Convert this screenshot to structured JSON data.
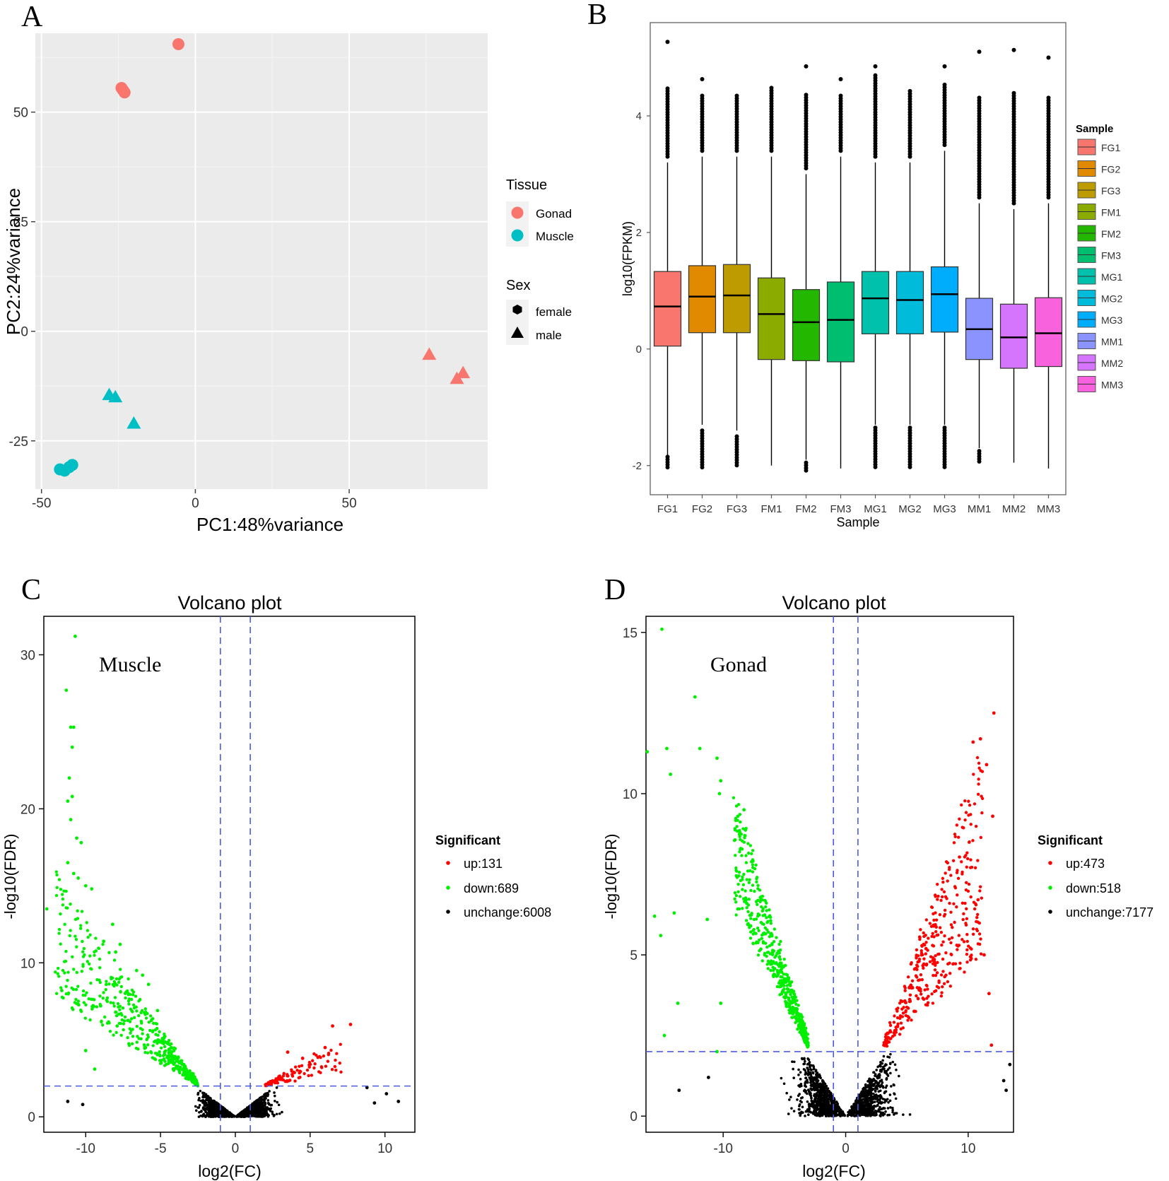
{
  "panels": {
    "A": {
      "letter": "A"
    },
    "B": {
      "letter": "B"
    },
    "C": {
      "letter": "C"
    },
    "D": {
      "letter": "D"
    }
  },
  "colors": {
    "gonad": "#F8766D",
    "muscle": "#00BFC4",
    "up": "#FF0000",
    "down": "#00EE00",
    "unchange": "#000000",
    "threshold": "#4B5BE0",
    "panel_bg": "#EBEBEB"
  },
  "chart_data": [
    {
      "panel": "A",
      "type": "scatter",
      "title": "",
      "xlabel": "PC1:48%variance",
      "ylabel": "PC2:24%variance",
      "xlim": [
        -52,
        95
      ],
      "ylim": [
        -36,
        68
      ],
      "xticks": [
        -50,
        0,
        50
      ],
      "yticks": [
        -25,
        0,
        25,
        50
      ],
      "grid": true,
      "legend": {
        "color_title": "Tissue",
        "color_entries": [
          "Gonad",
          "Muscle"
        ],
        "shape_title": "Sex",
        "shape_entries": [
          "female",
          "male"
        ]
      },
      "points": [
        {
          "x": -5.5,
          "y": 65.5,
          "tissue": "Gonad",
          "sex": "female"
        },
        {
          "x": -24,
          "y": 55.5,
          "tissue": "Gonad",
          "sex": "female"
        },
        {
          "x": -23.5,
          "y": 55,
          "tissue": "Gonad",
          "sex": "female"
        },
        {
          "x": -23,
          "y": 54.5,
          "tissue": "Gonad",
          "sex": "female"
        },
        {
          "x": 76,
          "y": -5.3,
          "tissue": "Gonad",
          "sex": "male"
        },
        {
          "x": 87,
          "y": -9.5,
          "tissue": "Gonad",
          "sex": "male"
        },
        {
          "x": 85,
          "y": -10.8,
          "tissue": "Gonad",
          "sex": "male"
        },
        {
          "x": -28,
          "y": -14.5,
          "tissue": "Muscle",
          "sex": "male"
        },
        {
          "x": -26,
          "y": -15,
          "tissue": "Muscle",
          "sex": "male"
        },
        {
          "x": -20,
          "y": -21,
          "tissue": "Muscle",
          "sex": "male"
        },
        {
          "x": -44,
          "y": -31.5,
          "tissue": "Muscle",
          "sex": "female"
        },
        {
          "x": -42.5,
          "y": -31.8,
          "tissue": "Muscle",
          "sex": "female"
        },
        {
          "x": -41,
          "y": -31,
          "tissue": "Muscle",
          "sex": "female"
        },
        {
          "x": -40,
          "y": -30.5,
          "tissue": "Muscle",
          "sex": "female"
        }
      ]
    },
    {
      "panel": "B",
      "type": "box",
      "title": "",
      "xlabel": "Sample",
      "ylabel": "log10(FPKM)",
      "ylim": [
        -2.5,
        5.6
      ],
      "yticks": [
        -2,
        0,
        2,
        4
      ],
      "legend_title": "Sample",
      "categories": [
        "FG1",
        "FG2",
        "FG3",
        "FM1",
        "FM2",
        "FM3",
        "MG1",
        "MG2",
        "MG3",
        "MM1",
        "MM2",
        "MM3"
      ],
      "box_colors": [
        "#F8766D",
        "#E18A00",
        "#BE9C00",
        "#8CAB00",
        "#24B700",
        "#00BE70",
        "#00C1AB",
        "#00BBDA",
        "#00ACFC",
        "#8B93FF",
        "#D575FE",
        "#F962DD"
      ],
      "boxes": [
        {
          "q1": 0.05,
          "median": 0.73,
          "q3": 1.33,
          "whisker_low": -1.85,
          "whisker_high": 3.2,
          "out_low_max": -1.85,
          "out_low_min": -2.05,
          "out_high_min": 3.3,
          "out_high_max": 4.5,
          "extreme": 5.27
        },
        {
          "q1": 0.28,
          "median": 0.9,
          "q3": 1.43,
          "whisker_low": -1.3,
          "whisker_high": 3.3,
          "out_low_max": -1.4,
          "out_low_min": -2.05,
          "out_high_min": 3.4,
          "out_high_max": 4.35,
          "extreme": 4.63
        },
        {
          "q1": 0.28,
          "median": 0.92,
          "q3": 1.45,
          "whisker_low": -1.4,
          "whisker_high": 3.3,
          "out_low_max": -1.5,
          "out_low_min": -2.0,
          "out_high_min": 3.4,
          "out_high_max": 4.35,
          "extreme": null
        },
        {
          "q1": -0.18,
          "median": 0.6,
          "q3": 1.22,
          "whisker_low": -2.0,
          "whisker_high": 3.3,
          "out_low_max": null,
          "out_low_min": null,
          "out_high_min": 3.4,
          "out_high_max": 4.5,
          "extreme": null
        },
        {
          "q1": -0.2,
          "median": 0.46,
          "q3": 1.02,
          "whisker_low": -1.9,
          "whisker_high": 3.0,
          "out_low_max": -1.95,
          "out_low_min": -2.1,
          "out_high_min": 3.1,
          "out_high_max": 4.4,
          "extreme": 4.85
        },
        {
          "q1": -0.22,
          "median": 0.5,
          "q3": 1.15,
          "whisker_low": -2.05,
          "whisker_high": 3.3,
          "out_low_max": null,
          "out_low_min": null,
          "out_high_min": 3.4,
          "out_high_max": 4.35,
          "extreme": 4.63
        },
        {
          "q1": 0.26,
          "median": 0.87,
          "q3": 1.33,
          "whisker_low": -1.3,
          "whisker_high": 3.2,
          "out_low_max": -1.35,
          "out_low_min": -2.05,
          "out_high_min": 3.3,
          "out_high_max": 4.7,
          "extreme": 4.85
        },
        {
          "q1": 0.26,
          "median": 0.84,
          "q3": 1.33,
          "whisker_low": -1.3,
          "whisker_high": 3.2,
          "out_low_max": -1.35,
          "out_low_min": -2.05,
          "out_high_min": 3.3,
          "out_high_max": 4.45,
          "extreme": null
        },
        {
          "q1": 0.29,
          "median": 0.94,
          "q3": 1.41,
          "whisker_low": -1.3,
          "whisker_high": 3.4,
          "out_low_max": -1.35,
          "out_low_min": -2.05,
          "out_high_min": 3.5,
          "out_high_max": 4.55,
          "extreme": 4.85
        },
        {
          "q1": -0.18,
          "median": 0.34,
          "q3": 0.87,
          "whisker_low": -1.7,
          "whisker_high": 2.5,
          "out_low_max": -1.75,
          "out_low_min": -1.95,
          "out_high_min": 2.6,
          "out_high_max": 4.35,
          "extreme": 5.1
        },
        {
          "q1": -0.33,
          "median": 0.2,
          "q3": 0.77,
          "whisker_low": -1.95,
          "whisker_high": 2.4,
          "out_low_max": null,
          "out_low_min": null,
          "out_high_min": 2.5,
          "out_high_max": 4.4,
          "extreme": 5.13
        },
        {
          "q1": -0.3,
          "median": 0.27,
          "q3": 0.88,
          "whisker_low": -2.05,
          "whisker_high": 2.5,
          "out_low_max": null,
          "out_low_min": null,
          "out_high_min": 2.6,
          "out_high_max": 4.35,
          "extreme": 5.0
        }
      ]
    },
    {
      "panel": "C",
      "type": "scatter",
      "title": "Volcano plot",
      "annotation": "Muscle",
      "xlabel": "log2(FC)",
      "ylabel": "-log10(FDR)",
      "xlim": [
        -12.8,
        12
      ],
      "ylim": [
        -1,
        32.5
      ],
      "xticks": [
        -10,
        -5,
        0,
        5,
        10
      ],
      "yticks": [
        0,
        10,
        20,
        30
      ],
      "thresholds": {
        "fc": [
          -1,
          1
        ],
        "fdr": 2
      },
      "legend": {
        "title": "Significant",
        "up": "up:131",
        "down": "down:689",
        "unchange": "unchange:6008"
      },
      "counts": {
        "up": 131,
        "down": 689,
        "unchange": 6008
      },
      "sample_points": [
        [
          -10.7,
          31.2
        ],
        [
          -11.3,
          27.7
        ],
        [
          -11.0,
          25.3
        ],
        [
          -10.8,
          25.3
        ],
        [
          -10.9,
          24
        ],
        [
          -11.1,
          22
        ],
        [
          -11.2,
          20.5
        ],
        [
          -10.9,
          20.8
        ],
        [
          -11.0,
          19.3
        ],
        [
          -10.6,
          18.1
        ],
        [
          -10.3,
          17.8
        ],
        [
          -11.2,
          16.5
        ],
        [
          -10.8,
          15.8
        ],
        [
          -10.5,
          15.5
        ],
        [
          -10.0,
          15
        ],
        [
          -9.6,
          14.8
        ],
        [
          -8.2,
          12.5
        ],
        [
          -8.8,
          11.4
        ],
        [
          -7.7,
          11.2
        ],
        [
          -8.0,
          10.7
        ],
        [
          -12.6,
          13.5
        ],
        [
          -11.6,
          8.2
        ],
        [
          -10.5,
          7.3
        ],
        [
          -9.0,
          7.2
        ],
        [
          -8.0,
          6.8
        ],
        [
          -10.0,
          4.3
        ],
        [
          -9.4,
          3.1
        ],
        [
          -7.9,
          5.9
        ],
        [
          -6.6,
          9.5
        ],
        [
          -6.2,
          9.2
        ],
        [
          -5.8,
          8.6
        ],
        [
          -5.2,
          6.9
        ],
        [
          6.5,
          5.9
        ],
        [
          7.7,
          6.0
        ],
        [
          6.0,
          4.5
        ],
        [
          3.5,
          4.2
        ],
        [
          4.5,
          3.8
        ],
        [
          5.0,
          3.4
        ],
        [
          -11.2,
          1.0
        ],
        [
          -10.2,
          0.8
        ],
        [
          8.8,
          1.9
        ],
        [
          9.3,
          0.9
        ],
        [
          10.1,
          1.5
        ],
        [
          10.9,
          1.0
        ]
      ]
    },
    {
      "panel": "D",
      "type": "scatter",
      "title": "Volcano plot",
      "annotation": "Gonad",
      "xlabel": "log2(FC)",
      "ylabel": "-log10(FDR)",
      "xlim": [
        -16.3,
        13.7
      ],
      "ylim": [
        -0.5,
        15.5
      ],
      "xticks": [
        -10,
        0,
        10
      ],
      "yticks": [
        0,
        5,
        10,
        15
      ],
      "thresholds": {
        "fc": [
          -1,
          1
        ],
        "fdr": 2
      },
      "legend": {
        "title": "Significant",
        "up": "up:473",
        "down": "down:518",
        "unchange": "unchange:7177"
      },
      "counts": {
        "up": 473,
        "down": 518,
        "unchange": 7177
      },
      "sample_points": [
        [
          -15.0,
          15.1
        ],
        [
          -12.3,
          13.0
        ],
        [
          -14.6,
          11.4
        ],
        [
          -11.9,
          11.4
        ],
        [
          -10.5,
          11.1
        ],
        [
          -14.3,
          10.6
        ],
        [
          -10.2,
          10.4
        ],
        [
          -10.3,
          10.0
        ],
        [
          -8.3,
          9.5
        ],
        [
          -8.8,
          9.3
        ],
        [
          -16.2,
          11.3
        ],
        [
          -15.6,
          6.2
        ],
        [
          -14.0,
          6.3
        ],
        [
          -15.1,
          5.6
        ],
        [
          -11.3,
          6.1
        ],
        [
          -13.7,
          3.5
        ],
        [
          -10.2,
          3.5
        ],
        [
          -14.8,
          2.5
        ],
        [
          -10.5,
          2.0
        ],
        [
          12.1,
          12.5
        ],
        [
          11.0,
          11.7
        ],
        [
          10.4,
          11.6
        ],
        [
          11.5,
          10.9
        ],
        [
          12.0,
          9.3
        ],
        [
          11.3,
          5.0
        ],
        [
          11.7,
          3.8
        ],
        [
          11.9,
          2.2
        ],
        [
          13.4,
          1.6
        ],
        [
          12.9,
          1.1
        ],
        [
          -11.2,
          1.2
        ],
        [
          -13.6,
          0.8
        ],
        [
          13.1,
          0.8
        ]
      ]
    }
  ]
}
